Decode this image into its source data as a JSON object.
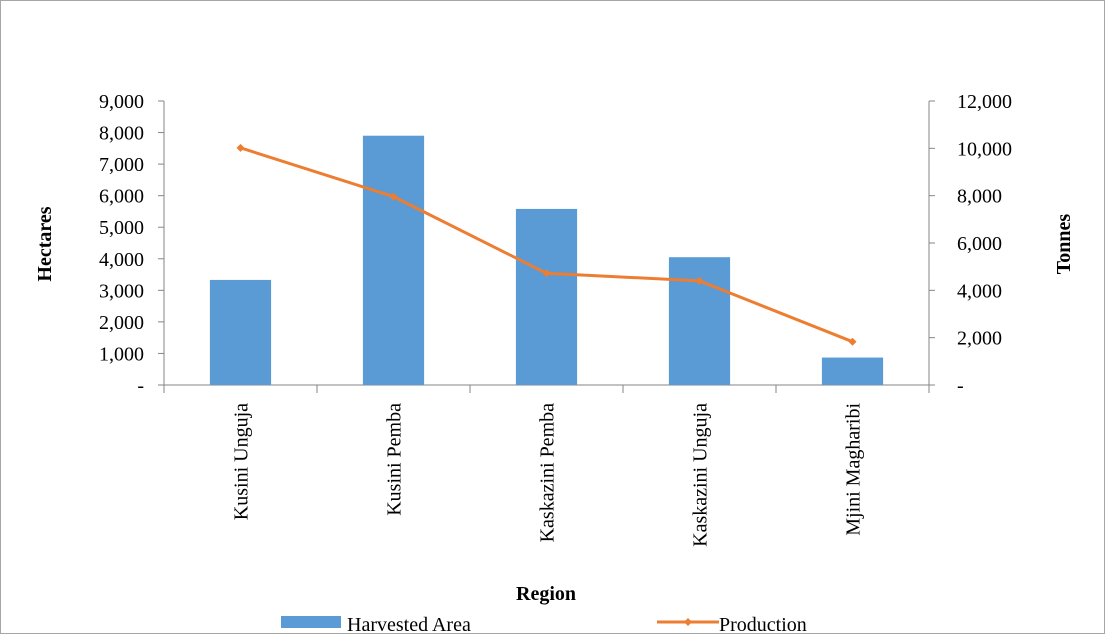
{
  "colors": {
    "bar": "#5b9bd5",
    "line": "#ed7d31",
    "axis": "#868686"
  },
  "chart_data": {
    "type": "bar",
    "categories": [
      "Kusini Unguja",
      "Kusini Pemba",
      "Kaskazini Pemba",
      "Kaskazini Unguja",
      "Mjini Magharibi"
    ],
    "series": [
      {
        "name": "Harvested Area",
        "type": "bar",
        "axis": "left",
        "values": [
          3330,
          7900,
          5580,
          4050,
          870
        ]
      },
      {
        "name": "Production",
        "type": "line",
        "axis": "right",
        "marker": "diamond",
        "values": [
          10020,
          7960,
          4720,
          4400,
          1830
        ]
      }
    ],
    "xlabel": "Region",
    "ylabel": "Hectares",
    "y2label": "Tonnes",
    "ylim": [
      0,
      9000
    ],
    "y2lim": [
      0,
      12000
    ],
    "yticks": [
      "-",
      "1,000",
      "2,000",
      "3,000",
      "4,000",
      "5,000",
      "6,000",
      "7,000",
      "8,000",
      "9,000"
    ],
    "y2ticks": [
      "-",
      "2,000",
      "4,000",
      "6,000",
      "8,000",
      "10,000",
      "12,000"
    ],
    "grid": false,
    "legend_position": "bottom"
  }
}
